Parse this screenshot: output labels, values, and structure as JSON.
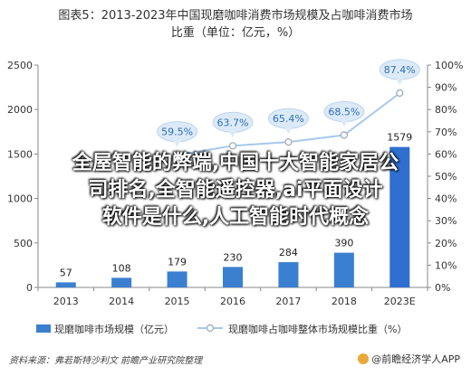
{
  "header": {
    "title_line1": "图表5：2013-2023年中国现磨咖啡消费市场规模及占咖啡消费市场",
    "title_line2": "比重（单位：亿元，%）"
  },
  "overlay_text": {
    "line1": "全屋智能的弊端,中国十大智能家居公",
    "line2": "司排名,全智能遥控器,ai平面设计",
    "line3": "软件是什么,人工智能时代概念"
  },
  "footer": {
    "source": "资料来源：弗若斯特沙利文 前瞻产业研究院整理",
    "brand": "@前瞻经济学人APP"
  },
  "chart_data": {
    "type": "bar",
    "categories": [
      "2013",
      "2014",
      "2015",
      "2016",
      "2017",
      "2018",
      "2023E"
    ],
    "series": [
      {
        "name": "现磨咖啡市场规模（亿元）",
        "type": "bar",
        "axis": "left",
        "values": [
          57,
          108,
          179,
          230,
          284,
          390,
          1579
        ],
        "labels": [
          "57",
          "108",
          "179",
          "230",
          "284",
          "390",
          "1579"
        ]
      },
      {
        "name": "现磨咖啡占咖啡整体市场规模比重（%）",
        "type": "line",
        "axis": "right",
        "values": [
          null,
          null,
          59.5,
          63.7,
          65.4,
          68.5,
          87.4
        ],
        "labels": [
          "",
          "",
          "59.5%",
          "63.7%",
          "65.4%",
          "68.5%",
          "87.4%"
        ]
      }
    ],
    "ylim_left": [
      0,
      2500
    ],
    "yticks_left": [
      "0",
      "500",
      "1000",
      "1500",
      "2000",
      "2500"
    ],
    "ylim_right": [
      0,
      100
    ],
    "yticks_right": [
      "0%",
      "10%",
      "20%",
      "30%",
      "40%",
      "50%",
      "60%",
      "70%",
      "80%",
      "90%",
      "100%"
    ],
    "colors": {
      "bar": "#3b7fd0",
      "bar_last": "#2e6fd0",
      "line": "#a7c8ec",
      "label_fill": "#dceaf8",
      "label_text": "#2e6fb6"
    },
    "legend_position": "bottom",
    "grid": false
  }
}
